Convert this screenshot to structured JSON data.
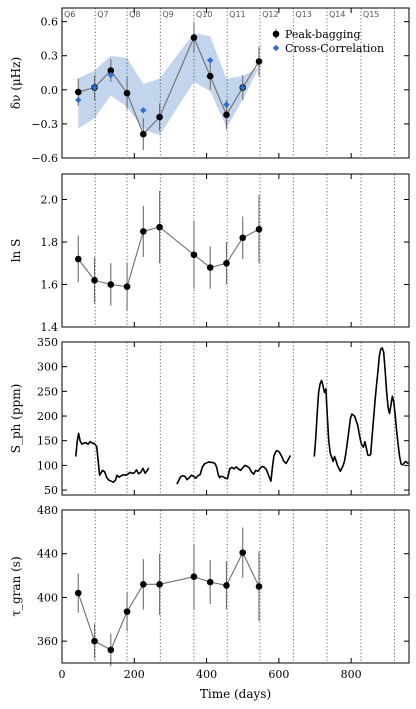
{
  "quarters": {
    "labels": [
      "Q6",
      "Q7",
      "Q8",
      "Q9",
      "Q10",
      "Q11",
      "Q12",
      "Q13",
      "Q14",
      "Q15"
    ],
    "boundaries": [
      92,
      180,
      272,
      365,
      457,
      548,
      640,
      733,
      827,
      920
    ]
  },
  "chart_data": [
    {
      "type": "scatter",
      "ylabel": "δν (μHz)",
      "xlim": [
        0,
        960
      ],
      "ylim": [
        -0.6,
        0.72
      ],
      "yticks": [
        -0.6,
        -0.3,
        0.0,
        0.3,
        0.6
      ],
      "ytick_labels": [
        "−0.6",
        "−0.3",
        "0.0",
        "0.3",
        "0.6"
      ],
      "legend_position": "top-right",
      "band": {
        "x": [
          45,
          90,
          135,
          180,
          225,
          270,
          365,
          410,
          455,
          500,
          545
        ],
        "upper": [
          0.1,
          0.17,
          0.3,
          0.28,
          0.05,
          0.1,
          0.5,
          0.47,
          0.1,
          0.12,
          0.2
        ],
        "lower": [
          -0.34,
          -0.25,
          -0.05,
          -0.15,
          -0.35,
          -0.4,
          0.07,
          -0.01,
          -0.33,
          -0.09,
          0.2
        ]
      },
      "series": [
        {
          "name": "Peak-bagging",
          "color": "#000000",
          "x": [
            45,
            90,
            135,
            180,
            225,
            270,
            365,
            410,
            455,
            500,
            545
          ],
          "y": [
            -0.02,
            0.02,
            0.17,
            -0.03,
            -0.39,
            -0.24,
            0.46,
            0.12,
            -0.22,
            0.02,
            0.25
          ],
          "err": [
            0.12,
            0.11,
            0.1,
            0.14,
            0.14,
            0.12,
            0.13,
            0.12,
            0.13,
            0.11,
            0.13
          ]
        },
        {
          "name": "Cross-Correlation",
          "color": "#2e6fd1",
          "x": [
            45,
            90,
            135,
            225,
            410,
            455,
            500
          ],
          "y": [
            -0.09,
            0.02,
            0.13,
            -0.18,
            0.26,
            -0.13,
            0.02
          ]
        }
      ]
    },
    {
      "type": "scatter",
      "ylabel": "ln S",
      "xlim": [
        0,
        960
      ],
      "ylim": [
        1.4,
        2.12
      ],
      "yticks": [
        1.4,
        1.6,
        1.8,
        2.0
      ],
      "ytick_labels": [
        "1.4",
        "1.6",
        "1.8",
        "2.0"
      ],
      "series": [
        {
          "name": "",
          "color": "#000000",
          "x": [
            45,
            90,
            135,
            180,
            225,
            270,
            365,
            410,
            455,
            500,
            545
          ],
          "y": [
            1.72,
            1.62,
            1.6,
            1.59,
            1.85,
            1.87,
            1.74,
            1.68,
            1.7,
            1.82,
            1.86
          ],
          "err": [
            0.11,
            0.11,
            0.1,
            0.11,
            0.12,
            0.17,
            0.16,
            0.1,
            0.1,
            0.1,
            0.16
          ]
        }
      ]
    },
    {
      "type": "line",
      "ylabel": "S_ph (ppm)",
      "xlim": [
        0,
        960
      ],
      "ylim": [
        40,
        350
      ],
      "yticks": [
        50,
        100,
        150,
        200,
        250,
        300,
        350
      ],
      "ytick_labels": [
        "50",
        "100",
        "150",
        "200",
        "250",
        "300",
        "350"
      ],
      "segments": [
        {
          "x": [
            38,
            42,
            46,
            50,
            55,
            60,
            66,
            72,
            78,
            84,
            90,
            96,
            100,
            104,
            108,
            112,
            118,
            124,
            130,
            136,
            142,
            148,
            152,
            158,
            164,
            170,
            176,
            182,
            188,
            194,
            200,
            206,
            212,
            218,
            224,
            230,
            236,
            240
          ],
          "y": [
            118,
            148,
            165,
            150,
            143,
            145,
            146,
            143,
            148,
            145,
            144,
            138,
            110,
            80,
            85,
            90,
            87,
            75,
            70,
            68,
            66,
            70,
            80,
            76,
            79,
            81,
            80,
            82,
            86,
            84,
            85,
            91,
            83,
            86,
            94,
            84,
            90,
            95
          ]
        },
        {
          "x": [
            318,
            322,
            328,
            334,
            340,
            346,
            352,
            358,
            364,
            370,
            376,
            382,
            388,
            394,
            400,
            406,
            412,
            418,
            424,
            428,
            432,
            436,
            440,
            446,
            452,
            458,
            464,
            470,
            476,
            482,
            488,
            494,
            500,
            506,
            512,
            518,
            524,
            530,
            536,
            542,
            548,
            554,
            560,
            566,
            572,
            578,
            582,
            586,
            590,
            594,
            598,
            602,
            608,
            614,
            620,
            626,
            632
          ],
          "y": [
            62,
            68,
            77,
            79,
            78,
            71,
            75,
            80,
            78,
            74,
            79,
            81,
            96,
            103,
            105,
            107,
            106,
            106,
            103,
            96,
            82,
            75,
            78,
            77,
            74,
            73,
            93,
            96,
            93,
            97,
            93,
            90,
            95,
            100,
            98,
            95,
            87,
            82,
            90,
            88,
            94,
            98,
            96,
            91,
            79,
            68,
            95,
            118,
            126,
            130,
            129,
            126,
            118,
            108,
            104,
            112,
            120
          ]
        },
        {
          "x": [
            698,
            702,
            706,
            710,
            714,
            718,
            722,
            726,
            730,
            734,
            738,
            742,
            746,
            750,
            754,
            758,
            762,
            766,
            770,
            774,
            778,
            782,
            786,
            790,
            794,
            798,
            802,
            806,
            810,
            814,
            818,
            822,
            826,
            830,
            834,
            838,
            842,
            846,
            850,
            854,
            858,
            862,
            866,
            870,
            874,
            878,
            882,
            886,
            890,
            894,
            898,
            902,
            906,
            910,
            914,
            918,
            922,
            926,
            930,
            934,
            938,
            942,
            946,
            950,
            954,
            958
          ],
          "y": [
            118,
            155,
            205,
            248,
            265,
            272,
            262,
            248,
            255,
            200,
            150,
            125,
            117,
            108,
            118,
            110,
            100,
            94,
            88,
            94,
            100,
            110,
            128,
            150,
            172,
            195,
            204,
            202,
            199,
            190,
            182,
            165,
            150,
            140,
            137,
            148,
            135,
            121,
            120,
            122,
            160,
            195,
            230,
            262,
            290,
            322,
            336,
            338,
            329,
            292,
            250,
            218,
            205,
            222,
            240,
            228,
            200,
            168,
            142,
            118,
            103,
            101,
            104,
            108,
            106,
            104
          ]
        }
      ]
    },
    {
      "type": "scatter",
      "ylabel": "τ_gran (s)",
      "xlabel": "Time (days)",
      "xlim": [
        0,
        960
      ],
      "ylim": [
        340,
        480
      ],
      "xticks": [
        0,
        200,
        400,
        600,
        800
      ],
      "xtick_labels": [
        "0",
        "200",
        "400",
        "600",
        "800"
      ],
      "yticks": [
        360,
        400,
        440,
        480
      ],
      "ytick_labels": [
        "360",
        "400",
        "440",
        "480"
      ],
      "series": [
        {
          "name": "",
          "color": "#000000",
          "x": [
            45,
            90,
            135,
            180,
            225,
            270,
            365,
            410,
            455,
            500,
            545
          ],
          "y": [
            404,
            360,
            352,
            387,
            412,
            412,
            419,
            414,
            411,
            441,
            410
          ],
          "err": [
            18,
            16,
            15,
            18,
            23,
            28,
            30,
            20,
            22,
            23,
            32
          ]
        }
      ]
    }
  ]
}
